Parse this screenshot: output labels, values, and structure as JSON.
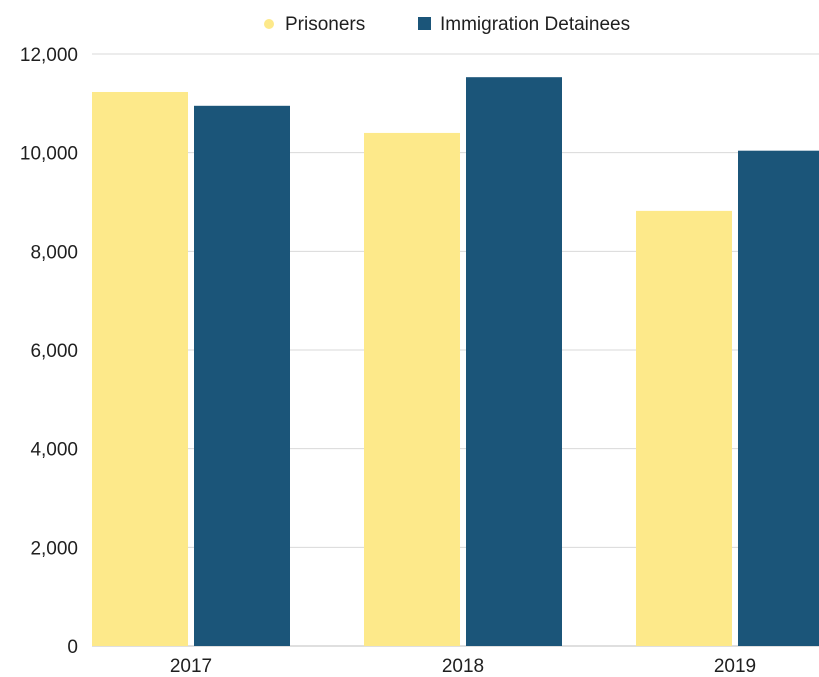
{
  "chart_data": {
    "type": "bar",
    "categories": [
      "2017",
      "2018",
      "2019"
    ],
    "series": [
      {
        "name": "Prisoners",
        "color": "#fde98a",
        "values": [
          11230,
          10400,
          8820
        ]
      },
      {
        "name": "Immigration Detainees",
        "color": "#1b5579",
        "values": [
          10950,
          11530,
          10040
        ]
      }
    ],
    "ylim": [
      0,
      12000
    ],
    "yticks": [
      "0",
      "2,000",
      "4,000",
      "6,000",
      "8,000",
      "10,000",
      "12,000"
    ],
    "ytick_values": [
      0,
      2000,
      4000,
      6000,
      8000,
      10000,
      12000
    ],
    "grid": true,
    "legend_position": "top-center"
  }
}
